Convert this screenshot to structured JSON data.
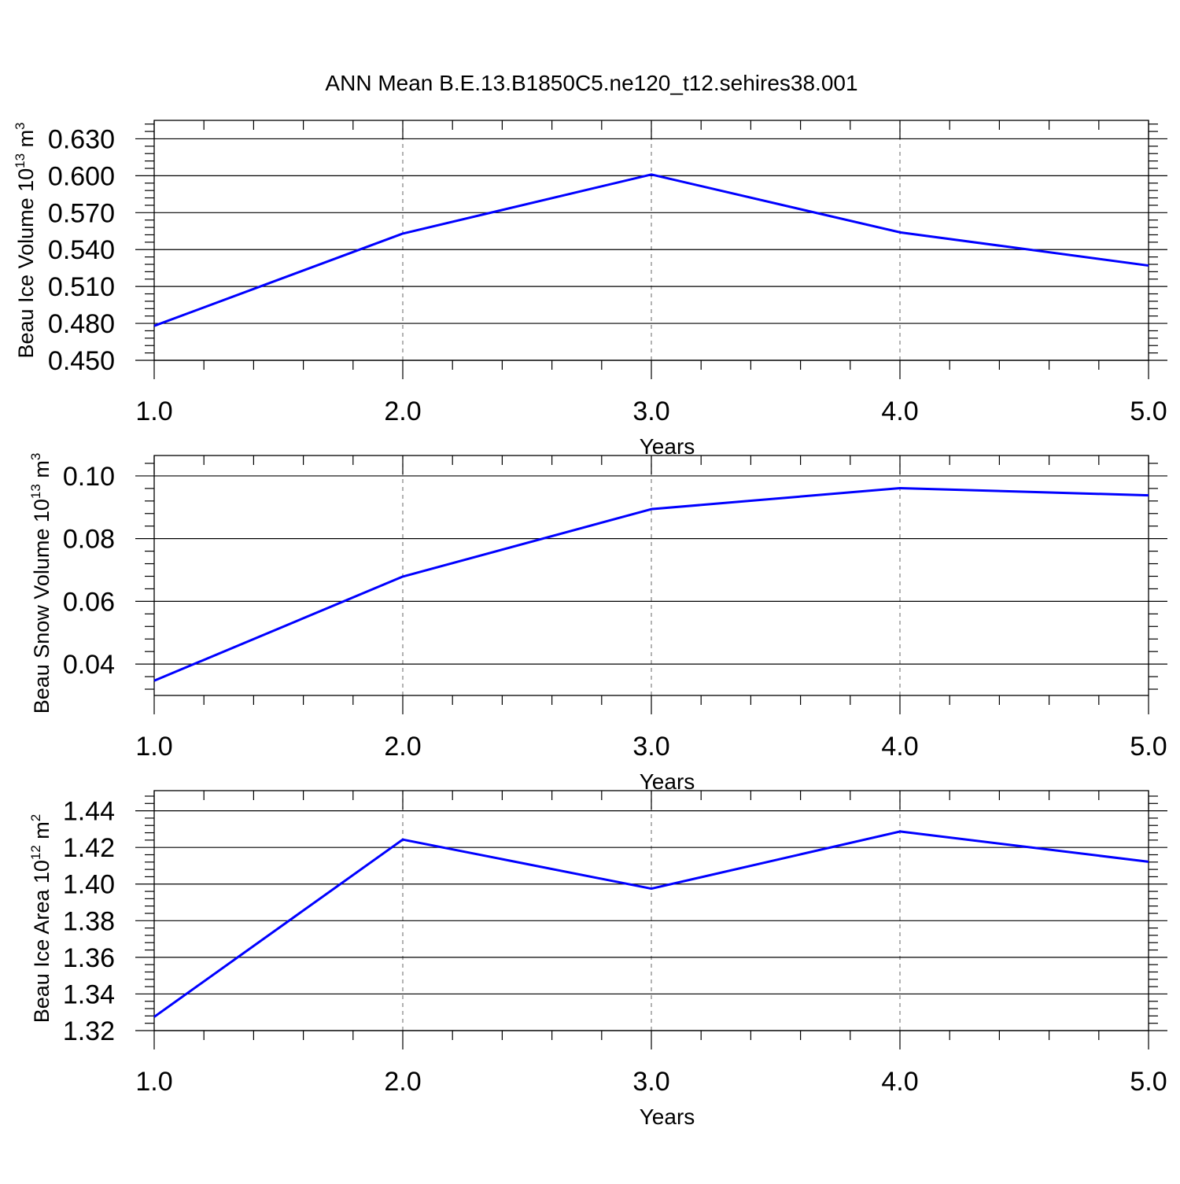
{
  "title": "ANN Mean B.E.13.B1850C5.ne120_t12.sehires38.001",
  "colors": {
    "series": "#0000ff",
    "axis": "#000000",
    "grid": "#808080",
    "background": "#ffffff"
  },
  "chart_data": [
    {
      "type": "line",
      "ylabel_main": "Beau Ice Volume 10",
      "ylabel_exp": "13",
      "ylabel_unit": " m",
      "ylabel_unit_exp": "3",
      "xlabel": "Years",
      "x": [
        1,
        2,
        3,
        4,
        5
      ],
      "values": [
        0.478,
        0.553,
        0.601,
        0.554,
        0.527
      ],
      "xlim": [
        1,
        5
      ],
      "ylim": [
        0.45,
        0.645
      ],
      "xticks": [
        "1.0",
        "2.0",
        "3.0",
        "4.0",
        "5.0"
      ],
      "yticks": [
        "0.450",
        "0.480",
        "0.510",
        "0.540",
        "0.570",
        "0.600",
        "0.630"
      ],
      "ytick_values": [
        0.45,
        0.48,
        0.51,
        0.54,
        0.57,
        0.6,
        0.63
      ],
      "ytick_minor_step": 0.006,
      "grid": "vertical dashed at major x ticks"
    },
    {
      "type": "line",
      "ylabel_main": "Beau Snow Volume 10",
      "ylabel_exp": "13",
      "ylabel_unit": " m",
      "ylabel_unit_exp": "3",
      "xlabel": "Years",
      "x": [
        1,
        2,
        3,
        4,
        5
      ],
      "values": [
        0.0347,
        0.0679,
        0.0894,
        0.0961,
        0.0938
      ],
      "xlim": [
        1,
        5
      ],
      "ylim": [
        0.03,
        0.1065
      ],
      "xticks": [
        "1.0",
        "2.0",
        "3.0",
        "4.0",
        "5.0"
      ],
      "yticks": [
        "0.04",
        "0.06",
        "0.08",
        "0.10"
      ],
      "ytick_values": [
        0.04,
        0.06,
        0.08,
        0.1
      ],
      "ytick_minor_step": 0.004,
      "grid": "vertical dashed at major x ticks"
    },
    {
      "type": "line",
      "ylabel_main": "Beau Ice Area 10",
      "ylabel_exp": "12",
      "ylabel_unit": " m",
      "ylabel_unit_exp": "2",
      "xlabel": "Years",
      "x": [
        1,
        2,
        3,
        4,
        5
      ],
      "values": [
        1.3275,
        1.4243,
        1.3975,
        1.4287,
        1.4122
      ],
      "xlim": [
        1,
        5
      ],
      "ylim": [
        1.32,
        1.451
      ],
      "xticks": [
        "1.0",
        "2.0",
        "3.0",
        "4.0",
        "5.0"
      ],
      "yticks": [
        "1.32",
        "1.34",
        "1.36",
        "1.38",
        "1.40",
        "1.42",
        "1.44"
      ],
      "ytick_values": [
        1.32,
        1.34,
        1.36,
        1.38,
        1.4,
        1.42,
        1.44
      ],
      "ytick_minor_step": 0.004,
      "grid": "vertical dashed at major x ticks"
    }
  ]
}
